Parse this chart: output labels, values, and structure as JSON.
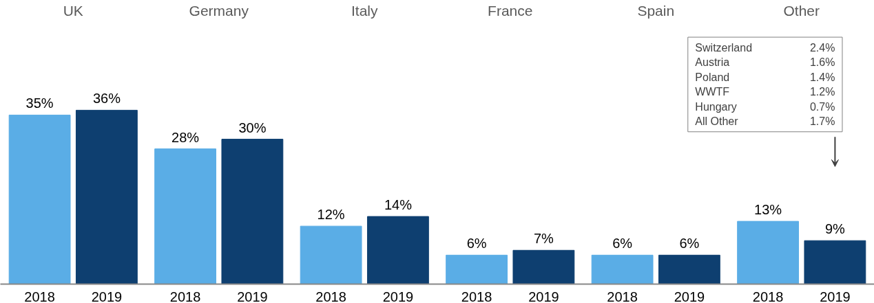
{
  "chart_data": {
    "type": "bar",
    "categories": [
      "UK",
      "Germany",
      "Italy",
      "France",
      "Spain",
      "Other"
    ],
    "series": [
      {
        "name": "2018",
        "color": "#5aade6",
        "values": [
          35,
          28,
          12,
          6,
          6,
          13
        ],
        "value_labels": [
          "35%",
          "28%",
          "12%",
          "6%",
          "6%",
          "13%"
        ]
      },
      {
        "name": "2019",
        "color": "#0e3f70",
        "values": [
          36,
          30,
          14,
          7,
          6,
          9
        ],
        "value_labels": [
          "36%",
          "30%",
          "14%",
          "7%",
          "6%",
          "9%"
        ]
      }
    ],
    "grid": false,
    "annotations": [
      "Switzerland 2.4%",
      "Austria 1.6%",
      "Poland 1.4%",
      "WWTF 1.2%",
      "Hungary 0.7%",
      "All Other 1.7%"
    ]
  }
}
